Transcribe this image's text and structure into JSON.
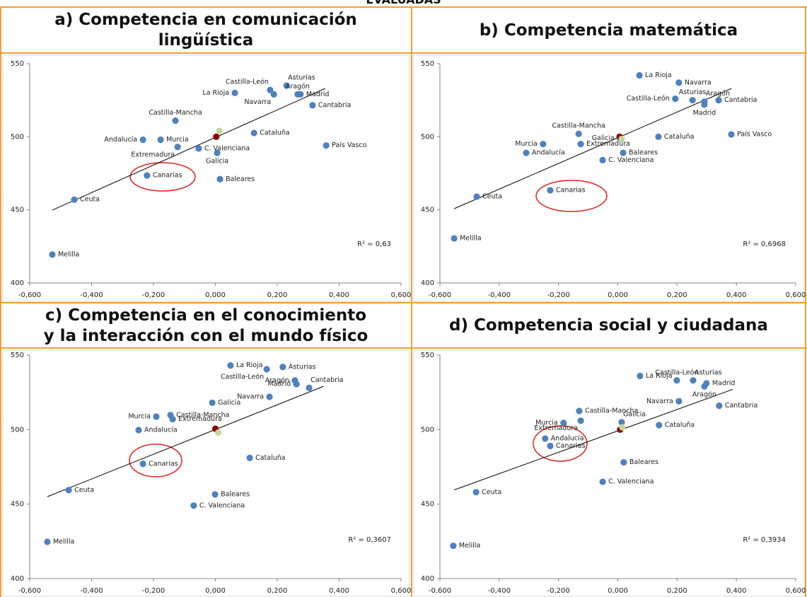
{
  "title": "EVALUADAS",
  "chart_data": [
    {
      "type": "scatter",
      "title": "a) Competencia en comunicación lingüística",
      "xlim": [
        -0.6,
        0.6
      ],
      "ylim": [
        400,
        550
      ],
      "xticks": [
        {
          "value": -0.6,
          "label": "-0,600"
        },
        {
          "value": -0.4,
          "label": "-0,400"
        },
        {
          "value": -0.2,
          "label": "-0,200"
        },
        {
          "value": 0,
          "label": "0,000"
        },
        {
          "value": 0.2,
          "label": "0,200"
        },
        {
          "value": 0.4,
          "label": "0,400"
        },
        {
          "value": 0.6,
          "label": "0,600"
        }
      ],
      "yticks": [
        400,
        450,
        500,
        550
      ],
      "color": "#4f81bd",
      "labels": [
        "Melilla",
        "Ceuta",
        "Canarias",
        "Andalucía",
        "Murcia",
        "Extremadura",
        "Castilla-Mancha",
        "C. Valenciana",
        "Galicia",
        "Baleares",
        "Cataluña",
        "La Rioja",
        "Castilla-León",
        "Navarra",
        "Asturias",
        "Aragón",
        "Madrid",
        "Cantabria",
        "País Vasco"
      ],
      "x": [
        -0.527,
        -0.456,
        -0.221,
        -0.234,
        -0.177,
        -0.122,
        -0.129,
        -0.054,
        0.006,
        0.015,
        0.125,
        0.063,
        0.177,
        0.189,
        0.23,
        0.266,
        0.275,
        0.314,
        0.358
      ],
      "y": [
        419.4,
        457,
        473.5,
        498,
        498,
        493,
        511,
        492,
        489,
        471,
        502.6,
        530,
        532,
        529,
        535,
        529,
        529,
        521.5,
        494
      ],
      "highlights": {
        "x": [
          0.003,
          0.013
        ],
        "y": [
          500,
          504
        ],
        "colors": [
          "#8b0000",
          "#c4d79b"
        ]
      },
      "trendline": {
        "x": [
          -0.527,
          0.355
        ],
        "y": [
          449.8,
          533
        ],
        "color": "#000000"
      },
      "annotation": "R² = 0,63"
    },
    {
      "type": "scatter",
      "title": "b) Competencia matemática",
      "xlim": [
        -0.6,
        0.6
      ],
      "ylim": [
        400,
        550
      ],
      "xticks": [
        {
          "value": -0.6,
          "label": "-0,600"
        },
        {
          "value": -0.4,
          "label": "-0,400"
        },
        {
          "value": -0.2,
          "label": "-0,200"
        },
        {
          "value": 0,
          "label": "0,000"
        },
        {
          "value": 0.2,
          "label": "0,200"
        },
        {
          "value": 0.4,
          "label": "0,400"
        },
        {
          "value": 0.6,
          "label": "0,600"
        }
      ],
      "yticks": [
        400,
        450,
        500,
        550
      ],
      "color": "#4f81bd",
      "labels": [
        "Melilla",
        "Ceuta",
        "Canarias",
        "Andalucía",
        "Murcia",
        "Extremadura",
        "Castilla-Mancha",
        "C. Valenciana",
        "Galicia",
        "Baleares",
        "Cataluña",
        "La Rioja",
        "Navarra",
        "Asturias",
        "Castilla-León",
        "Aragón",
        "Madrid",
        "Cantabria",
        "País Vasco"
      ],
      "x": [
        -0.552,
        -0.476,
        -0.228,
        -0.309,
        -0.252,
        -0.125,
        -0.132,
        -0.051,
        0.008,
        0.018,
        0.137,
        0.073,
        0.206,
        0.252,
        0.194,
        0.292,
        0.292,
        0.34,
        0.383
      ],
      "y": [
        430.5,
        459,
        463.4,
        489,
        495,
        495,
        502,
        484,
        499,
        489,
        500,
        542,
        537,
        525,
        526,
        524,
        522,
        525,
        501.6
      ],
      "highlights": {
        "x": [
          0.006,
          0.013
        ],
        "y": [
          500,
          498.5
        ],
        "colors": [
          "#8b0000",
          "#c4d79b"
        ]
      },
      "trendline": {
        "x": [
          -0.552,
          0.383
        ],
        "y": [
          450.8,
          533
        ],
        "color": "#000000"
      },
      "annotation": "R² = 0,6968"
    },
    {
      "type": "scatter",
      "title": "c) Competencia en el conocimiento y la interacción con el mundo físico",
      "xlim": [
        -0.6,
        0.6
      ],
      "ylim": [
        400,
        550
      ],
      "xticks": [
        {
          "value": -0.6,
          "label": "-0,600"
        },
        {
          "value": -0.4,
          "label": "-0,400"
        },
        {
          "value": -0.2,
          "label": "-0,200"
        },
        {
          "value": 0,
          "label": "0,000"
        },
        {
          "value": 0.2,
          "label": "0,200"
        },
        {
          "value": 0.4,
          "label": "0,400"
        },
        {
          "value": 0.6,
          "label": "0,600"
        }
      ],
      "yticks": [
        400,
        450,
        500,
        550
      ],
      "color": "#4f81bd",
      "labels": [
        "Melilla",
        "Ceuta",
        "Canarias",
        "Andalucía",
        "Murcia",
        "Castilla-Mancha",
        "Extremadura",
        "Galicia",
        "La Rioja",
        "Castilla-León",
        "Asturias",
        "Navarra",
        "Aragón",
        "Madrid",
        "Cantabria",
        "Cataluña",
        "Baleares",
        "C. Valenciana"
      ],
      "x": [
        -0.543,
        -0.474,
        -0.234,
        -0.248,
        -0.191,
        -0.145,
        -0.138,
        -0.01,
        0.049,
        0.166,
        0.218,
        0.175,
        0.257,
        0.262,
        0.303,
        0.111,
        -0.001,
        -0.07
      ],
      "y": [
        424.7,
        459.4,
        477,
        499.7,
        508.7,
        509.7,
        507,
        518,
        543,
        540.5,
        542,
        522,
        533,
        530.5,
        528,
        481,
        456.5,
        449
      ],
      "highlights": {
        "x": [
          0,
          0.009
        ],
        "y": [
          500.6,
          498
        ],
        "colors": [
          "#8b0000",
          "#c4d79b"
        ]
      },
      "trendline": {
        "x": [
          -0.543,
          0.349
        ],
        "y": [
          455,
          529
        ],
        "color": "#000000"
      },
      "annotation": "R² = 0,3607"
    },
    {
      "type": "scatter",
      "title": "d) Competencia social y ciudadana",
      "xlim": [
        -0.6,
        0.6
      ],
      "ylim": [
        400,
        550
      ],
      "xticks": [
        {
          "value": -0.6,
          "label": "-0,600"
        },
        {
          "value": -0.4,
          "label": "-0,400"
        },
        {
          "value": -0.2,
          "label": "-0,200"
        },
        {
          "value": 0,
          "label": "0,000"
        },
        {
          "value": 0.2,
          "label": "0,200"
        },
        {
          "value": 0.4,
          "label": "0,400"
        },
        {
          "value": 0.6,
          "label": "0,600"
        }
      ],
      "yticks": [
        400,
        450,
        500,
        550
      ],
      "color": "#4f81bd",
      "labels": [
        "Melilla",
        "Ceuta",
        "Andalucía",
        "Canarias",
        "Murcia",
        "Castilla-Mancha",
        "Extremadura",
        "Galicia",
        "C. Valenciana",
        "Baleares",
        "Cataluña",
        "La Rioja",
        "Castilla-León",
        "Asturias",
        "Madrid",
        "Aragón",
        "Navarra",
        "Cantabria"
      ],
      "x": [
        -0.555,
        -0.478,
        -0.245,
        -0.228,
        -0.183,
        -0.13,
        -0.125,
        0.013,
        -0.051,
        0.02,
        0.139,
        0.075,
        0.199,
        0.254,
        0.299,
        0.292,
        0.206,
        0.342
      ],
      "y": [
        422,
        458,
        494,
        489,
        504.5,
        512.5,
        506,
        505,
        465,
        478,
        503,
        536,
        533,
        533,
        531,
        529,
        519,
        516
      ],
      "highlights": {
        "x": [
          0.008,
          0.015
        ],
        "y": [
          500,
          501.5
        ],
        "colors": [
          "#8b0000",
          "#c4d79b"
        ]
      },
      "trendline": {
        "x": [
          -0.552,
          0.388
        ],
        "y": [
          459.5,
          527
        ],
        "color": "#000000"
      },
      "annotation": "R² = 0,3934"
    }
  ]
}
